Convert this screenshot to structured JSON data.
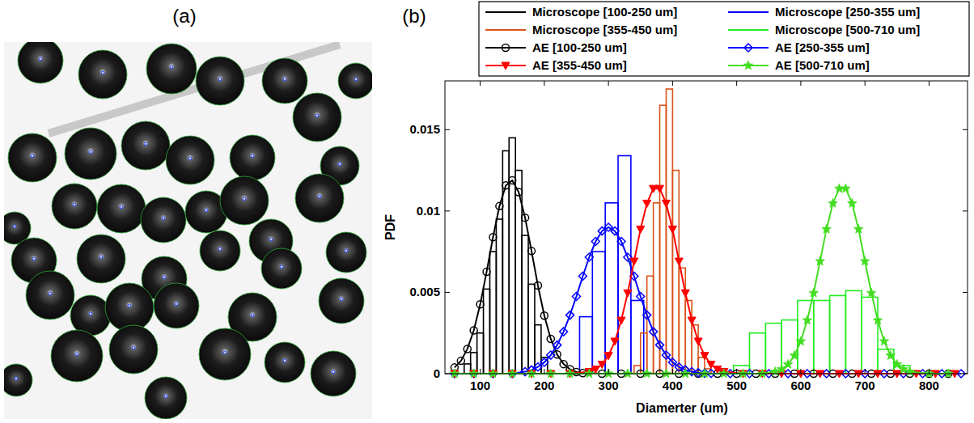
{
  "image_panel": {
    "label": "(a)"
  },
  "chart_data": {
    "type": "histogram",
    "title": "(b)",
    "x_label": "Diamerter (um)",
    "y_label": "PDF",
    "xlim": [
      45,
      860
    ],
    "xticks": [
      100,
      200,
      300,
      400,
      500,
      600,
      700,
      800
    ],
    "ylim": [
      0,
      0.018
    ],
    "yticks": [
      0,
      0.005,
      0.01,
      0.015
    ],
    "grid": false,
    "legend": "top-right",
    "series": [
      {
        "name": "Microscope [100-250 um]",
        "type": "histogram",
        "color": "#000000",
        "bins": [
          75,
          85,
          95,
          105,
          115,
          125,
          135,
          145,
          155,
          165,
          175,
          185,
          195,
          205
        ],
        "values": [
          0.0006,
          0.0013,
          0.0025,
          0.0052,
          0.0075,
          0.0095,
          0.0137,
          0.0145,
          0.0125,
          0.0085,
          0.0055,
          0.003,
          0.001
        ]
      },
      {
        "name": "Microscope [250-355 um]",
        "type": "histogram",
        "color": "#0000ff",
        "bins": [
          255,
          275,
          295,
          315,
          335,
          355
        ],
        "values": [
          0.0035,
          0.0075,
          0.0105,
          0.0134,
          0.0045
        ]
      },
      {
        "name": "Microscope [355-450 um]",
        "type": "histogram",
        "color": "#d95319",
        "bins": [
          340,
          350,
          360,
          370,
          380,
          390,
          400,
          410,
          420,
          430,
          440,
          450,
          460
        ],
        "values": [
          0.0005,
          0.0025,
          0.006,
          0.0105,
          0.0165,
          0.0175,
          0.0125,
          0.0065,
          0.0045,
          0.003,
          0.001,
          0.0003
        ]
      },
      {
        "name": "Microscope [500-710 um]",
        "type": "histogram",
        "color": "#22ee22",
        "bins": [
          495,
          520,
          545,
          570,
          595,
          620,
          645,
          670,
          695,
          720,
          745,
          770
        ],
        "values": [
          0.0005,
          0.0025,
          0.0031,
          0.0033,
          0.0045,
          0.0045,
          0.0048,
          0.0051,
          0.0047,
          0.0015,
          0.0005
        ]
      },
      {
        "name": "AE [100-250 um]",
        "type": "line",
        "color": "#000000",
        "marker": "circle",
        "x": [
          60,
          70,
          80,
          90,
          100,
          110,
          120,
          130,
          140,
          150,
          160,
          170,
          180,
          190,
          200,
          210,
          220,
          230,
          240,
          250,
          260,
          290,
          320,
          350,
          380,
          410,
          440,
          470,
          500,
          530,
          560,
          590,
          620,
          650,
          680,
          710,
          740,
          770,
          800,
          830
        ],
        "values": [
          0.00038,
          0.00079,
          0.00152,
          0.00266,
          0.00426,
          0.00626,
          0.00839,
          0.0103,
          0.01157,
          0.01188,
          0.01116,
          0.00959,
          0.00754,
          0.00542,
          0.00357,
          0.00214,
          0.00118,
          0.00059,
          0.00027,
          0.0001,
          4e-05,
          0,
          0,
          0,
          0,
          0,
          0,
          0,
          0,
          0,
          0,
          0,
          0,
          0,
          0,
          0,
          0,
          0,
          0,
          0
        ]
      },
      {
        "name": "AE [250-355 um]",
        "type": "line",
        "color": "#0000ff",
        "marker": "diamond",
        "x": [
          60,
          90,
          120,
          150,
          170,
          180,
          190,
          200,
          210,
          220,
          230,
          240,
          250,
          260,
          270,
          280,
          290,
          300,
          310,
          320,
          330,
          340,
          350,
          360,
          370,
          380,
          390,
          400,
          410,
          420,
          430,
          440,
          450,
          460,
          490,
          520,
          550,
          580,
          610,
          640,
          670,
          700,
          730,
          760,
          790,
          820,
          850
        ],
        "values": [
          0,
          0,
          0,
          0,
          0.00012,
          0.00023,
          0.00041,
          0.0007,
          0.00114,
          0.00176,
          0.00258,
          0.0036,
          0.00475,
          0.00599,
          0.00716,
          0.00813,
          0.00877,
          0.009,
          0.00877,
          0.00813,
          0.00716,
          0.00599,
          0.00475,
          0.0036,
          0.00258,
          0.00176,
          0.00114,
          0.0007,
          0.00041,
          0.00023,
          0.00012,
          6e-05,
          3e-05,
          1e-05,
          0,
          0,
          0,
          0,
          0,
          0,
          0,
          0,
          0,
          0,
          0,
          0,
          0
        ]
      },
      {
        "name": "AE [355-450 um]",
        "type": "line",
        "color": "#ff0000",
        "marker": "triangle-down",
        "x": [
          60,
          90,
          120,
          150,
          180,
          210,
          240,
          270,
          280,
          290,
          300,
          310,
          320,
          330,
          340,
          350,
          360,
          370,
          380,
          390,
          400,
          410,
          420,
          430,
          440,
          450,
          460,
          470,
          480,
          510,
          540,
          570,
          600,
          630,
          660,
          690,
          720,
          750,
          780,
          810,
          840
        ],
        "values": [
          0,
          0,
          0,
          0,
          0,
          0,
          0,
          0.00012,
          0.00027,
          0.00057,
          0.00111,
          0.00199,
          0.00328,
          0.00496,
          0.00691,
          0.00888,
          0.01047,
          0.01138,
          0.01138,
          0.01047,
          0.00888,
          0.00691,
          0.00496,
          0.00328,
          0.00199,
          0.00111,
          0.00057,
          0.00027,
          0.00012,
          0,
          0,
          0,
          0,
          0,
          0,
          0,
          0,
          0,
          0,
          0,
          0
        ]
      },
      {
        "name": "AE [500-710 um]",
        "type": "line",
        "color": "#44dd22",
        "marker": "star",
        "x": [
          60,
          90,
          120,
          150,
          180,
          210,
          240,
          270,
          300,
          330,
          360,
          390,
          420,
          450,
          480,
          510,
          540,
          560,
          570,
          580,
          590,
          600,
          610,
          620,
          630,
          640,
          650,
          660,
          670,
          680,
          690,
          700,
          710,
          720,
          730,
          740,
          750,
          760,
          770,
          800,
          830
        ],
        "values": [
          0,
          0,
          0,
          0,
          0,
          0,
          0,
          0,
          0,
          0,
          0,
          0,
          0,
          0,
          0,
          0,
          0,
          0.00012,
          0.00027,
          0.00057,
          0.00111,
          0.00199,
          0.00328,
          0.00496,
          0.00691,
          0.00888,
          0.01047,
          0.01138,
          0.01138,
          0.01047,
          0.00888,
          0.00691,
          0.00496,
          0.00328,
          0.00199,
          0.00111,
          0.00057,
          0.00027,
          0.00012,
          0,
          0
        ]
      }
    ]
  }
}
